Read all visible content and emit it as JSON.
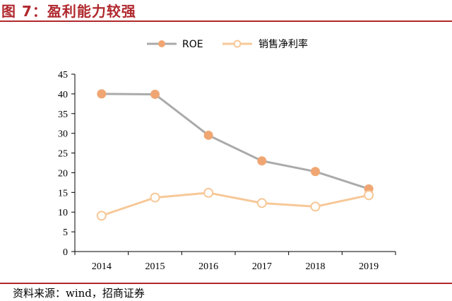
{
  "header": {
    "title": "图 7：盈利能力较强"
  },
  "footer": {
    "source": "资料来源：wind，招商证券"
  },
  "chart_data": {
    "type": "line",
    "title": "",
    "xlabel": "",
    "ylabel": "",
    "categories": [
      "2014",
      "2015",
      "2016",
      "2017",
      "2018",
      "2019"
    ],
    "ylim": [
      0,
      45
    ],
    "yticks": [
      0,
      5,
      10,
      15,
      20,
      25,
      30,
      35,
      40,
      45
    ],
    "grid": false,
    "legend_position": "top",
    "series": [
      {
        "name": "ROE",
        "values": [
          40.0,
          39.9,
          29.5,
          23.0,
          20.3,
          15.9
        ],
        "color": "#aaaaaa",
        "marker": "filled",
        "marker_color": "#f0a673"
      },
      {
        "name": "销售净利率",
        "values": [
          9.1,
          13.7,
          14.9,
          12.3,
          11.4,
          14.3
        ],
        "color": "#f7c898",
        "marker": "hollow",
        "marker_color": "#f7c898"
      }
    ]
  }
}
